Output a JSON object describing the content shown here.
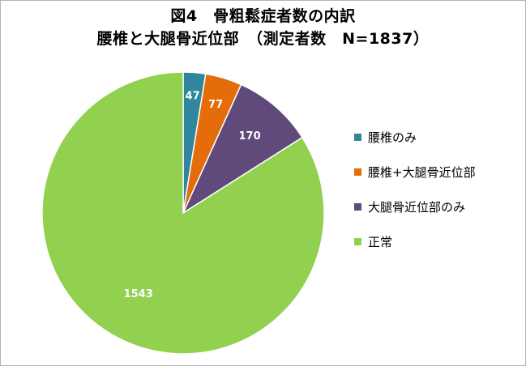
{
  "chart_data": {
    "type": "pie",
    "title": "図4　骨粗鬆症者数の内訳",
    "subtitle": "腰椎と大腿骨近位部　（測定者数　N=1837）",
    "categories": [
      "腰椎のみ",
      "腰椎+大腿骨近位部",
      "大腿骨近位部のみ",
      "正常"
    ],
    "values": [
      47,
      77,
      170,
      1543
    ],
    "data_labels": [
      "47",
      "77",
      "170",
      "1543"
    ],
    "colors": [
      "#31859c",
      "#e46c0a",
      "#604a7b",
      "#92d050"
    ],
    "start_angle_deg": 0,
    "direction": "clockwise",
    "legend_position": "right"
  }
}
